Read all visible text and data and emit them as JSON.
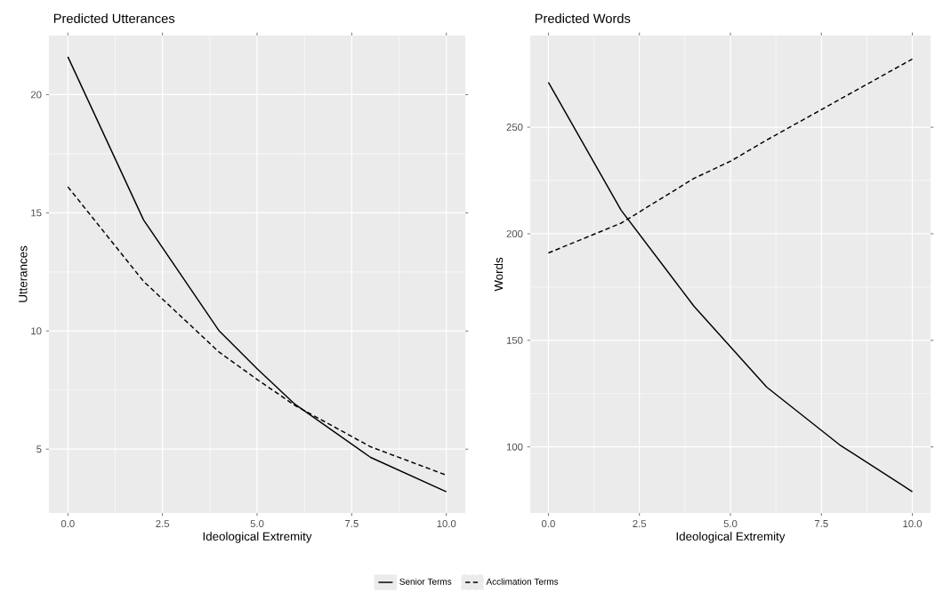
{
  "chart_data": [
    {
      "type": "line",
      "title": "Predicted Utterances",
      "xlabel": "Ideological Extremity",
      "ylabel": "Utterances",
      "x": [
        0,
        2,
        4,
        5,
        6,
        8,
        10
      ],
      "series": [
        {
          "name": "Senior Terms",
          "color": "#000000",
          "line_style": "solid",
          "values": [
            21.6,
            14.7,
            10.0,
            8.4,
            6.9,
            4.65,
            3.2
          ]
        },
        {
          "name": "Acclimation Terms",
          "color": "#000000",
          "line_style": "dashed",
          "values": [
            16.1,
            12.1,
            9.1,
            7.95,
            6.85,
            5.1,
            3.9
          ]
        }
      ],
      "xlim": [
        -0.5,
        10.5
      ],
      "ylim": [
        2.3,
        22.5
      ],
      "xticks": [
        {
          "value": 0,
          "label": "0.0"
        },
        {
          "value": 2.5,
          "label": "2.5"
        },
        {
          "value": 5,
          "label": "5.0"
        },
        {
          "value": 7.5,
          "label": "7.5"
        },
        {
          "value": 10,
          "label": "10.0"
        }
      ],
      "yticks": [
        5,
        10,
        15,
        20
      ],
      "grid": true,
      "legend": "bottom"
    },
    {
      "type": "line",
      "title": "Predicted Words",
      "xlabel": "Ideological Extremity",
      "ylabel": "Words",
      "x": [
        0,
        2,
        4,
        5,
        6,
        8,
        10
      ],
      "series": [
        {
          "color": "#000000",
          "line_style": "solid",
          "values": [
            271,
            211,
            166,
            147,
            128,
            101,
            79
          ]
        },
        {
          "color": "#000000",
          "line_style": "dashed",
          "values": [
            191,
            205,
            226,
            234,
            244,
            263,
            282
          ]
        }
      ],
      "xlim": [
        -0.5,
        10.5
      ],
      "ylim": [
        69,
        293
      ],
      "xticks": [
        {
          "value": 0,
          "label": "0.0"
        },
        {
          "value": 2.5,
          "label": "2.5"
        },
        {
          "value": 5,
          "label": "5.0"
        },
        {
          "value": 7.5,
          "label": "7.5"
        },
        {
          "value": 10,
          "label": "10.0"
        }
      ],
      "yticks": [
        100,
        150,
        200,
        250
      ],
      "grid": true
    }
  ]
}
